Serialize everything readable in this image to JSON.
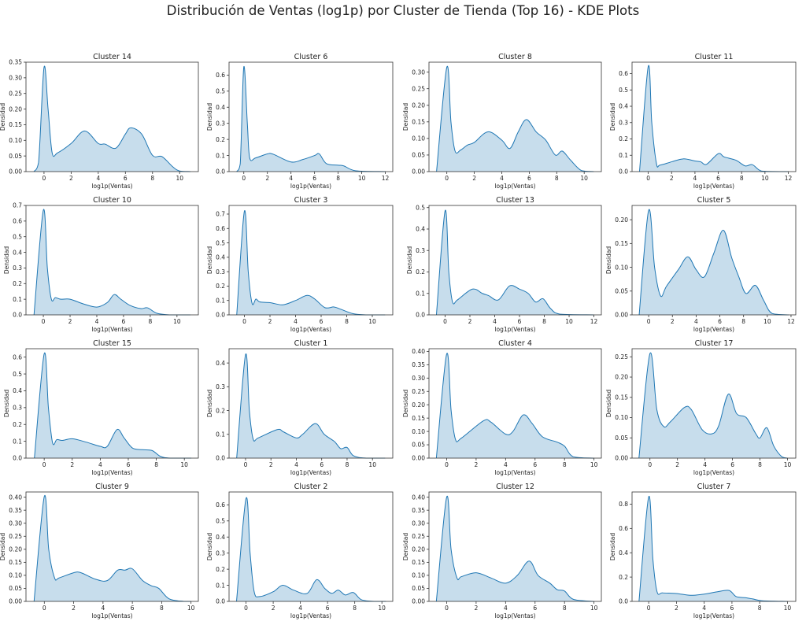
{
  "title": "Distribución de Ventas (log1p) por Cluster de Tienda (Top 16) - KDE Plots",
  "colors": {
    "line": "#1f77b4",
    "fill": "#1f77b4"
  },
  "chart_data": [
    {
      "type": "area",
      "title": "Cluster 14",
      "xlabel": "log1p(Ventas)",
      "ylabel": "Densidad",
      "xlim": [
        -1.33,
        11.38
      ],
      "ylim": [
        0,
        0.35
      ],
      "xticks": [
        "0",
        "2",
        "4",
        "6",
        "8",
        "10"
      ],
      "yticks": [
        "0.00",
        "0.05",
        "0.10",
        "0.15",
        "0.20",
        "0.25",
        "0.30",
        "0.35"
      ],
      "x": [
        -0.75,
        -0.4,
        0,
        0.3,
        0.6,
        1,
        2,
        3,
        4,
        4.5,
        5.3,
        6,
        6.4,
        7.2,
        8,
        8.7,
        9.5,
        10,
        10.8
      ],
      "y": [
        0,
        0.03,
        0.333,
        0.2,
        0.06,
        0.06,
        0.09,
        0.13,
        0.09,
        0.088,
        0.075,
        0.12,
        0.14,
        0.12,
        0.052,
        0.048,
        0.015,
        0.002,
        0
      ]
    },
    {
      "type": "area",
      "title": "Cluster 6",
      "xlabel": "log1p(Ventas)",
      "ylabel": "Densidad",
      "xlim": [
        -1.25,
        12.63
      ],
      "ylim": [
        0,
        0.68
      ],
      "xticks": [
        "0",
        "2",
        "4",
        "6",
        "8",
        "10",
        "12"
      ],
      "yticks": [
        "0.0",
        "0.1",
        "0.2",
        "0.3",
        "0.4",
        "0.5",
        "0.6"
      ],
      "x": [
        -0.6,
        -0.3,
        0,
        0.3,
        0.5,
        1,
        2,
        2.5,
        4,
        5,
        6,
        6.4,
        7,
        8,
        8.5,
        9.5,
        12
      ],
      "y": [
        0,
        0.05,
        0.65,
        0.3,
        0.085,
        0.085,
        0.11,
        0.108,
        0.06,
        0.075,
        0.1,
        0.11,
        0.05,
        0.04,
        0.035,
        0.005,
        0
      ]
    },
    {
      "type": "area",
      "title": "Cluster 8",
      "xlabel": "log1p(Ventas)",
      "ylabel": "Densidad",
      "xlim": [
        -1.3,
        11.25
      ],
      "ylim": [
        0,
        0.33
      ],
      "xticks": [
        "0",
        "2",
        "4",
        "6",
        "8",
        "10"
      ],
      "yticks": [
        "0.00",
        "0.05",
        "0.10",
        "0.15",
        "0.20",
        "0.25",
        "0.30"
      ],
      "x": [
        -0.75,
        0,
        0.3,
        0.6,
        1,
        1.5,
        2,
        3,
        4,
        4.6,
        5.2,
        5.8,
        6.5,
        7.2,
        7.9,
        8.4,
        9,
        9.8,
        10.7
      ],
      "y": [
        0,
        0.315,
        0.15,
        0.062,
        0.065,
        0.08,
        0.088,
        0.12,
        0.095,
        0.07,
        0.12,
        0.157,
        0.12,
        0.095,
        0.05,
        0.062,
        0.035,
        0.003,
        0
      ]
    },
    {
      "type": "area",
      "title": "Cluster 11",
      "xlabel": "log1p(Ventas)",
      "ylabel": "Densidad",
      "xlim": [
        -1.39,
        12.64
      ],
      "ylim": [
        0,
        0.67
      ],
      "xticks": [
        "0",
        "2",
        "4",
        "6",
        "8",
        "10",
        "12"
      ],
      "yticks": [
        "0.0",
        "0.1",
        "0.2",
        "0.3",
        "0.4",
        "0.5",
        "0.6"
      ],
      "x": [
        -0.75,
        0,
        0.3,
        0.7,
        1,
        2,
        3,
        4,
        4.5,
        5,
        6,
        6.5,
        7.5,
        8.3,
        8.9,
        9.5,
        10,
        12
      ],
      "y": [
        0,
        0.645,
        0.3,
        0.05,
        0.04,
        0.06,
        0.078,
        0.065,
        0.06,
        0.045,
        0.11,
        0.09,
        0.07,
        0.035,
        0.043,
        0.01,
        0.002,
        0
      ]
    },
    {
      "type": "area",
      "title": "Cluster 10",
      "xlabel": "log1p(Ventas)",
      "ylabel": "Densidad",
      "xlim": [
        -1.3,
        11.6
      ],
      "ylim": [
        0,
        0.7
      ],
      "xticks": [
        "0",
        "2",
        "4",
        "6",
        "8",
        "10"
      ],
      "yticks": [
        "0.0",
        "0.1",
        "0.2",
        "0.3",
        "0.4",
        "0.5",
        "0.6",
        "0.7"
      ],
      "x": [
        -0.7,
        0,
        0.3,
        0.6,
        0.9,
        1.3,
        2,
        3,
        4,
        4.8,
        5.3,
        5.8,
        6.5,
        7.3,
        7.8,
        8.5,
        9.5,
        11
      ],
      "y": [
        0,
        0.67,
        0.3,
        0.1,
        0.11,
        0.1,
        0.1,
        0.07,
        0.05,
        0.08,
        0.13,
        0.1,
        0.06,
        0.04,
        0.045,
        0.01,
        0,
        0
      ]
    },
    {
      "type": "area",
      "title": "Cluster 3",
      "xlabel": "log1p(Ventas)",
      "ylabel": "Densidad",
      "xlim": [
        -1.2,
        11.6
      ],
      "ylim": [
        0,
        0.76
      ],
      "xticks": [
        "0",
        "2",
        "4",
        "6",
        "8",
        "10"
      ],
      "yticks": [
        "0.0",
        "0.1",
        "0.2",
        "0.3",
        "0.4",
        "0.5",
        "0.6",
        "0.7"
      ],
      "x": [
        -0.6,
        0,
        0.3,
        0.6,
        0.9,
        1.2,
        2,
        3,
        4,
        4.9,
        5.5,
        6.3,
        7,
        7.5,
        8.5,
        9.5,
        11
      ],
      "y": [
        0,
        0.72,
        0.3,
        0.08,
        0.11,
        0.09,
        0.085,
        0.07,
        0.1,
        0.135,
        0.11,
        0.05,
        0.055,
        0.04,
        0.008,
        0,
        0
      ]
    },
    {
      "type": "area",
      "title": "Cluster 13",
      "xlabel": "log1p(Ventas)",
      "ylabel": "Densidad",
      "xlim": [
        -1.3,
        12.6
      ],
      "ylim": [
        0,
        0.51
      ],
      "xticks": [
        "0",
        "2",
        "4",
        "6",
        "8",
        "10",
        "12"
      ],
      "yticks": [
        "0.0",
        "0.1",
        "0.2",
        "0.3",
        "0.4",
        "0.5"
      ],
      "x": [
        -0.7,
        0,
        0.3,
        0.6,
        1,
        2.2,
        3,
        3.5,
        4.3,
        5.2,
        6,
        6.7,
        7.3,
        7.9,
        8.5,
        9.3,
        12
      ],
      "y": [
        0,
        0.485,
        0.2,
        0.06,
        0.07,
        0.12,
        0.1,
        0.09,
        0.07,
        0.135,
        0.12,
        0.1,
        0.06,
        0.075,
        0.03,
        0.003,
        0
      ]
    },
    {
      "type": "area",
      "title": "Cluster 5",
      "xlabel": "log1p(Ventas)",
      "ylabel": "Densidad",
      "xlim": [
        -1.4,
        12.4
      ],
      "ylim": [
        0,
        0.23
      ],
      "xticks": [
        "0",
        "2",
        "4",
        "6",
        "8",
        "10",
        "12"
      ],
      "yticks": [
        "0.00",
        "0.05",
        "0.10",
        "0.15",
        "0.20"
      ],
      "x": [
        -0.8,
        0,
        0.5,
        1,
        1.5,
        2.5,
        3.3,
        4,
        4.7,
        5.5,
        6.3,
        7,
        7.6,
        8.2,
        9,
        9.7,
        10.4,
        11.8
      ],
      "y": [
        0,
        0.22,
        0.1,
        0.04,
        0.06,
        0.095,
        0.122,
        0.095,
        0.08,
        0.13,
        0.178,
        0.12,
        0.08,
        0.045,
        0.062,
        0.03,
        0.003,
        0
      ]
    },
    {
      "type": "area",
      "title": "Cluster 15",
      "xlabel": "log1p(Ventas)",
      "ylabel": "Densidad",
      "xlim": [
        -1.3,
        11.0
      ],
      "ylim": [
        0,
        0.65
      ],
      "xticks": [
        "0",
        "2",
        "4",
        "6",
        "8",
        "10"
      ],
      "yticks": [
        "0.0",
        "0.1",
        "0.2",
        "0.3",
        "0.4",
        "0.5",
        "0.6"
      ],
      "x": [
        -0.7,
        0,
        0.3,
        0.6,
        0.9,
        1.3,
        2,
        3,
        4,
        4.5,
        5.2,
        5.7,
        6.3,
        7,
        7.7,
        8.3,
        9,
        10.5
      ],
      "y": [
        0,
        0.62,
        0.3,
        0.09,
        0.11,
        0.105,
        0.115,
        0.095,
        0.07,
        0.07,
        0.17,
        0.12,
        0.06,
        0.05,
        0.045,
        0.01,
        0,
        0
      ]
    },
    {
      "type": "area",
      "title": "Cluster 1",
      "xlabel": "log1p(Ventas)",
      "ylabel": "Densidad",
      "xlim": [
        -1.3,
        11.6
      ],
      "ylim": [
        0,
        0.46
      ],
      "xticks": [
        "0",
        "2",
        "4",
        "6",
        "8",
        "10"
      ],
      "yticks": [
        "0.0",
        "0.1",
        "0.2",
        "0.3",
        "0.4"
      ],
      "x": [
        -0.7,
        0,
        0.3,
        0.6,
        1,
        2.5,
        3,
        4,
        4.5,
        5.5,
        6.2,
        7,
        7.5,
        8,
        8.5,
        9.5,
        11
      ],
      "y": [
        0,
        0.435,
        0.2,
        0.08,
        0.085,
        0.12,
        0.11,
        0.085,
        0.1,
        0.145,
        0.1,
        0.07,
        0.04,
        0.045,
        0.01,
        0,
        0
      ]
    },
    {
      "type": "area",
      "title": "Cluster 4",
      "xlabel": "log1p(Ventas)",
      "ylabel": "Densidad",
      "xlim": [
        -1.2,
        10.5
      ],
      "ylim": [
        0,
        0.41
      ],
      "xticks": [
        "0",
        "2",
        "4",
        "6",
        "8",
        "10"
      ],
      "yticks": [
        "0.00",
        "0.05",
        "0.10",
        "0.15",
        "0.20",
        "0.25",
        "0.30",
        "0.35",
        "0.40"
      ],
      "x": [
        -0.7,
        0,
        0.3,
        0.6,
        1,
        2.5,
        3,
        4,
        4.5,
        5.2,
        5.8,
        6.5,
        7.5,
        8,
        8.6,
        10
      ],
      "y": [
        0,
        0.39,
        0.18,
        0.07,
        0.075,
        0.14,
        0.135,
        0.09,
        0.1,
        0.162,
        0.13,
        0.08,
        0.06,
        0.045,
        0.005,
        0
      ]
    },
    {
      "type": "area",
      "title": "Cluster 17",
      "xlabel": "log1p(Ventas)",
      "ylabel": "Densidad",
      "xlim": [
        -1.3,
        10.6
      ],
      "ylim": [
        0,
        0.27
      ],
      "xticks": [
        "0",
        "2",
        "4",
        "6",
        "8",
        "10"
      ],
      "yticks": [
        "0.00",
        "0.05",
        "0.10",
        "0.15",
        "0.20",
        "0.25"
      ],
      "x": [
        -0.8,
        0,
        0.5,
        1,
        1.5,
        2.5,
        3,
        3.8,
        4.5,
        5,
        5.7,
        6.3,
        7,
        7.7,
        8,
        8.5,
        9,
        9.6,
        10
      ],
      "y": [
        0,
        0.258,
        0.12,
        0.078,
        0.09,
        0.125,
        0.12,
        0.07,
        0.06,
        0.08,
        0.158,
        0.11,
        0.1,
        0.06,
        0.05,
        0.075,
        0.03,
        0.003,
        0
      ]
    },
    {
      "type": "area",
      "title": "Cluster 9",
      "xlabel": "log1p(Ventas)",
      "ylabel": "Densidad",
      "xlim": [
        -1.25,
        10.5
      ],
      "ylim": [
        0,
        0.42
      ],
      "xticks": [
        "0",
        "2",
        "4",
        "6",
        "8",
        "10"
      ],
      "yticks": [
        "0.00",
        "0.05",
        "0.10",
        "0.15",
        "0.20",
        "0.25",
        "0.30",
        "0.35",
        "0.40"
      ],
      "x": [
        -0.7,
        0,
        0.3,
        0.7,
        1,
        2,
        2.5,
        3.5,
        4.3,
        5,
        5.5,
        6,
        6.7,
        7.3,
        7.8,
        8.5,
        9.5,
        10
      ],
      "y": [
        0,
        0.403,
        0.2,
        0.09,
        0.09,
        0.11,
        0.11,
        0.085,
        0.08,
        0.12,
        0.12,
        0.125,
        0.08,
        0.06,
        0.05,
        0.01,
        0,
        0
      ]
    },
    {
      "type": "area",
      "title": "Cluster 2",
      "xlabel": "log1p(Ventas)",
      "ylabel": "Densidad",
      "xlim": [
        -1.25,
        10.8
      ],
      "ylim": [
        0,
        0.68
      ],
      "xticks": [
        "0",
        "2",
        "4",
        "6",
        "8",
        "10"
      ],
      "yticks": [
        "0.0",
        "0.1",
        "0.2",
        "0.3",
        "0.4",
        "0.5",
        "0.6"
      ],
      "x": [
        -0.7,
        0,
        0.3,
        0.6,
        1,
        2,
        2.7,
        3.5,
        4.5,
        5.2,
        5.8,
        6.3,
        6.8,
        7.3,
        7.9,
        8.5,
        9.5,
        10.3
      ],
      "y": [
        0,
        0.64,
        0.3,
        0.06,
        0.03,
        0.06,
        0.1,
        0.07,
        0.05,
        0.135,
        0.08,
        0.05,
        0.07,
        0.04,
        0.055,
        0.01,
        0,
        0
      ]
    },
    {
      "type": "area",
      "title": "Cluster 12",
      "xlabel": "log1p(Ventas)",
      "ylabel": "Densidad",
      "xlim": [
        -1.2,
        10.5
      ],
      "ylim": [
        0,
        0.42
      ],
      "xticks": [
        "0",
        "2",
        "4",
        "6",
        "8",
        "10"
      ],
      "yticks": [
        "0.00",
        "0.05",
        "0.10",
        "0.15",
        "0.20",
        "0.25",
        "0.30",
        "0.35",
        "0.40"
      ],
      "x": [
        -0.7,
        0,
        0.3,
        0.7,
        1,
        2,
        3,
        4,
        4.8,
        5.6,
        6.2,
        7,
        7.5,
        8,
        8.6,
        10
      ],
      "y": [
        0,
        0.4,
        0.2,
        0.09,
        0.095,
        0.11,
        0.09,
        0.07,
        0.1,
        0.155,
        0.1,
        0.07,
        0.045,
        0.04,
        0.008,
        0
      ]
    },
    {
      "type": "area",
      "title": "Cluster 7",
      "xlabel": "log1p(Ventas)",
      "ylabel": "Densidad",
      "xlim": [
        -1.2,
        10.6
      ],
      "ylim": [
        0,
        0.9
      ],
      "xticks": [
        "0",
        "2",
        "4",
        "6",
        "8",
        "10"
      ],
      "yticks": [
        "0.0",
        "0.2",
        "0.4",
        "0.6",
        "0.8"
      ],
      "x": [
        -0.7,
        0,
        0.3,
        0.6,
        1,
        2,
        3,
        4,
        5,
        5.8,
        6.3,
        7,
        7.5,
        8.2,
        10
      ],
      "y": [
        0,
        0.86,
        0.35,
        0.08,
        0.07,
        0.065,
        0.05,
        0.06,
        0.08,
        0.09,
        0.04,
        0.03,
        0.02,
        0.005,
        0
      ]
    }
  ]
}
